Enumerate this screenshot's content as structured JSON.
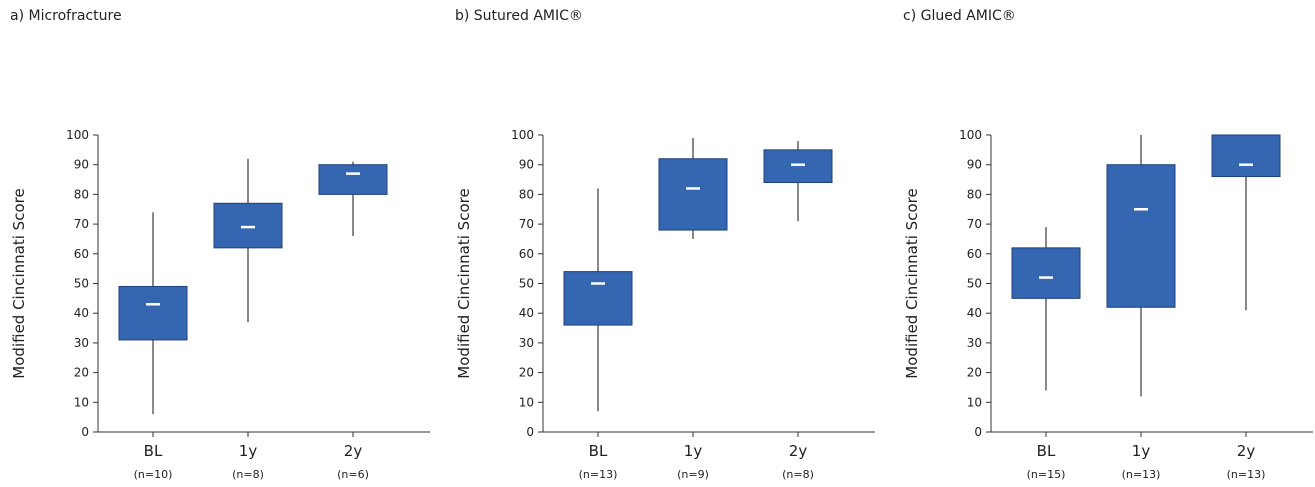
{
  "colors": {
    "box_fill": "#3466b2",
    "box_stroke": "#1f3f7a",
    "median": "#ffffff",
    "axis": "#333333"
  },
  "chart_data": [
    {
      "type": "boxplot",
      "title": "a) Microfracture",
      "ylabel": "Modified Cincinnati Score",
      "ylim": [
        0,
        100
      ],
      "yticks": [
        0,
        10,
        20,
        30,
        40,
        50,
        60,
        70,
        80,
        90,
        100
      ],
      "categories": [
        "BL",
        "1y",
        "2y"
      ],
      "sample_sizes": [
        "(n=10)",
        "(n=8)",
        "(n=6)"
      ],
      "boxes": [
        {
          "min": 6,
          "q1": 31,
          "median": 43,
          "q3": 49,
          "max": 74
        },
        {
          "min": 37,
          "q1": 62,
          "median": 69,
          "q3": 77,
          "max": 92
        },
        {
          "min": 66,
          "q1": 80,
          "median": 87,
          "q3": 90,
          "max": 91
        }
      ]
    },
    {
      "type": "boxplot",
      "title": "b) Sutured AMIC®",
      "ylabel": "Modified Cincinnati Score",
      "ylim": [
        0,
        100
      ],
      "yticks": [
        0,
        10,
        20,
        30,
        40,
        50,
        60,
        70,
        80,
        90,
        100
      ],
      "categories": [
        "BL",
        "1y",
        "2y"
      ],
      "sample_sizes": [
        "(n=13)",
        "(n=9)",
        "(n=8)"
      ],
      "boxes": [
        {
          "min": 7,
          "q1": 36,
          "median": 50,
          "q3": 54,
          "max": 82
        },
        {
          "min": 65,
          "q1": 68,
          "median": 82,
          "q3": 92,
          "max": 99
        },
        {
          "min": 71,
          "q1": 84,
          "median": 90,
          "q3": 95,
          "max": 98
        }
      ]
    },
    {
      "type": "boxplot",
      "title": "c) Glued AMIC®",
      "ylabel": "Modified Cincinnati Score",
      "ylim": [
        0,
        100
      ],
      "yticks": [
        0,
        10,
        20,
        30,
        40,
        50,
        60,
        70,
        80,
        90,
        100
      ],
      "categories": [
        "BL",
        "1y",
        "2y"
      ],
      "sample_sizes": [
        "(n=15)",
        "(n=13)",
        "(n=13)"
      ],
      "boxes": [
        {
          "min": 14,
          "q1": 45,
          "median": 52,
          "q3": 62,
          "max": 69
        },
        {
          "min": 12,
          "q1": 42,
          "median": 75,
          "q3": 90,
          "max": 100
        },
        {
          "min": 41,
          "q1": 86,
          "median": 90,
          "q3": 100,
          "max": 100
        }
      ]
    }
  ]
}
